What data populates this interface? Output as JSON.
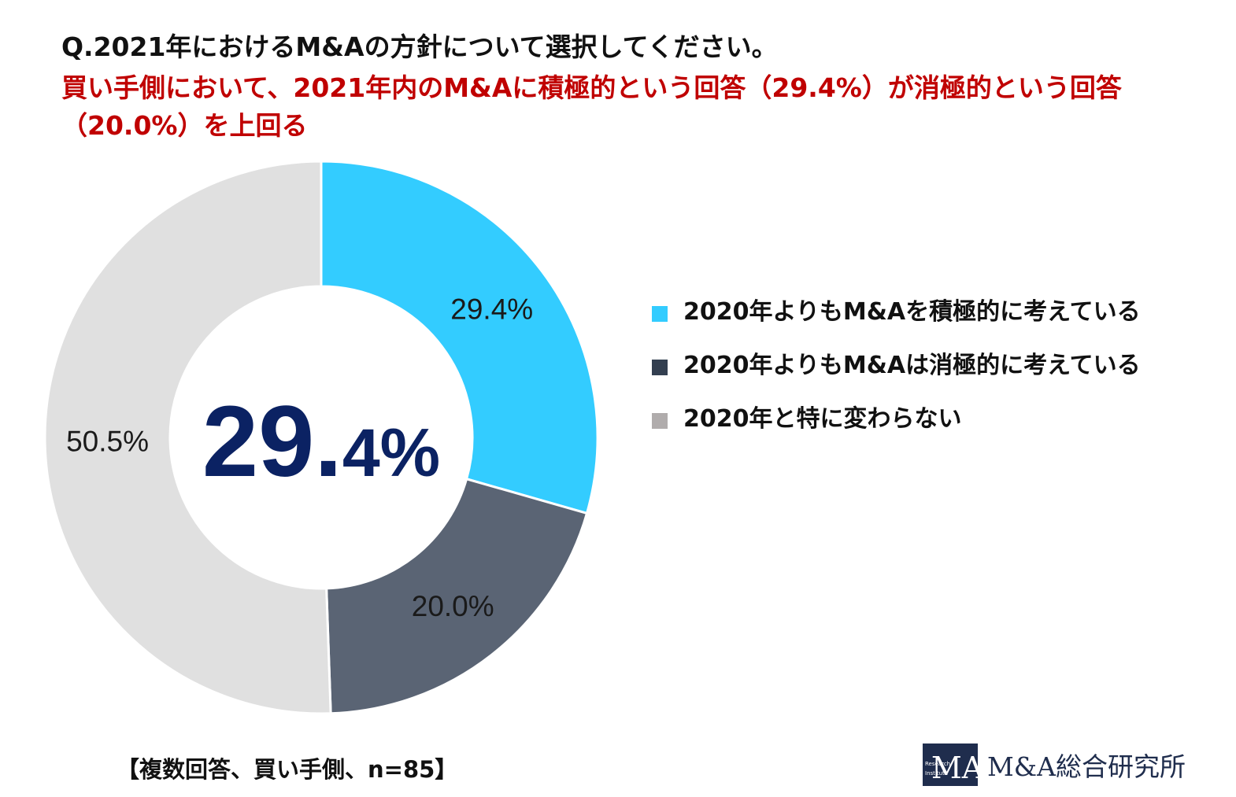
{
  "title": "Q.2021年におけるM&Aの方針について選択してください。",
  "subtitle": "買い手側において、2021年内のM&Aに積極的という回答（29.4%）が消極的という回答（20.0%）を上回る",
  "center_value": "29.",
  "center_value_small": "4%",
  "footnote": "【複数回答、買い手側、n=85】",
  "logo": {
    "text": "M&A総合研究所",
    "mark_letters": "MA",
    "mark_small_1": "Research",
    "mark_small_2": "Institute"
  },
  "chart_data": {
    "type": "pie",
    "variant": "donut",
    "categories": [
      "2020年よりもM&Aを積極的に考えている",
      "2020年よりもM&Aは消極的に考えている",
      "2020年と特に変わらない"
    ],
    "values": [
      29.4,
      20.0,
      50.5
    ],
    "data_labels": [
      "29.4%",
      "20.0%",
      "50.5%"
    ],
    "colors": [
      "#33ccff",
      "#5a6474",
      "#e0e0e0"
    ],
    "legend_colors": [
      "#33ccff",
      "#333f50",
      "#b0acac"
    ],
    "legend_position": "right"
  }
}
